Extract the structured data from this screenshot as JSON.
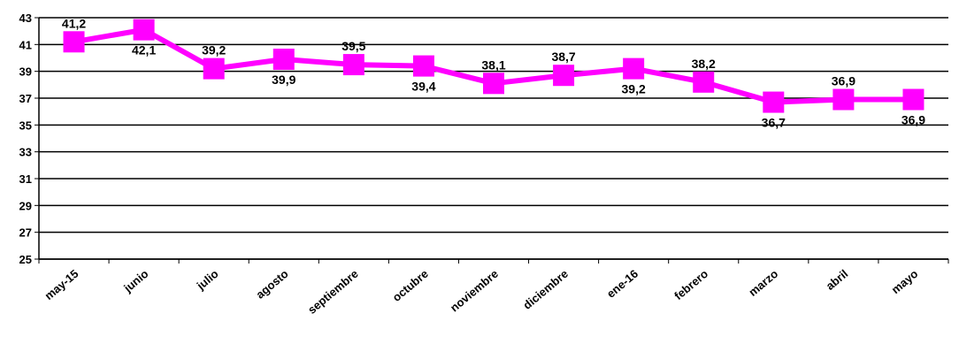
{
  "chart_data": {
    "type": "line",
    "categories": [
      "may-15",
      "junio",
      "julio",
      "agosto",
      "septiembre",
      "octubre",
      "noviembre",
      "diciembre",
      "ene-16",
      "febrero",
      "marzo",
      "abril",
      "mayo"
    ],
    "series": [
      {
        "values": [
          41.2,
          42.1,
          39.2,
          39.9,
          39.5,
          39.4,
          38.1,
          38.7,
          39.2,
          38.2,
          36.7,
          36.9,
          36.9
        ],
        "labels": [
          "41,2",
          "42,1",
          "39,2",
          "39,9",
          "39,5",
          "39,4",
          "38,1",
          "38,7",
          "39,2",
          "38,2",
          "36,7",
          "36,9",
          "36,9"
        ],
        "label_positions": [
          "above",
          "below",
          "above",
          "below",
          "above",
          "below",
          "above",
          "above",
          "below",
          "above",
          "below",
          "above",
          "below"
        ],
        "color": "#ff00ff"
      }
    ],
    "ylim": [
      25,
      43
    ],
    "yticks": [
      25,
      27,
      29,
      31,
      33,
      35,
      37,
      39,
      41,
      43
    ],
    "grid": true,
    "legend": "none"
  }
}
